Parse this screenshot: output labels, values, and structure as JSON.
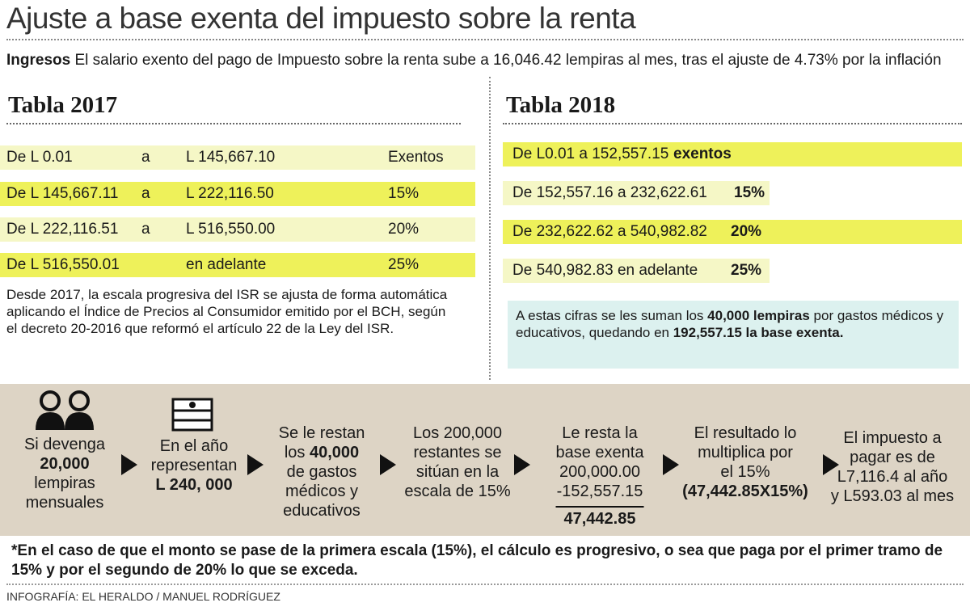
{
  "header": {
    "title": "Ajuste a base exenta del impuesto sobre la renta",
    "lead_label": "Ingresos",
    "lead_text": "El salario exento del pago de Impuesto sobre la renta sube  a 16,046.42 lempiras al mes, tras el ajuste de 4.73% por la inflación"
  },
  "table_2017": {
    "title": "Tabla 2017",
    "rows": [
      [
        "De L 0.01",
        "a",
        "L 145,667.10",
        "Exentos"
      ],
      [
        "De L 145,667.11",
        "a",
        "L 222,116.50",
        "15%"
      ],
      [
        "De L 222,116.51",
        "a",
        "L 516,550.00",
        "20%"
      ],
      [
        "De L 516,550.01",
        "en adelante",
        "25%"
      ]
    ],
    "note": "Desde 2017, la escala progresiva del ISR se ajusta de forma automática aplicando el Índice de Precios al Consumidor emitido por el BCH, según el decreto 20-2016 que reformó el artículo 22 de la Ley del ISR."
  },
  "table_2018": {
    "title": "Tabla 2018",
    "rows": [
      [
        "De L0.01 a 152,557.15",
        "exentos"
      ],
      [
        "De 152,557.16 a 232,622.61",
        "15%"
      ],
      [
        "De 232,622.62 a 540,982.82",
        "20%"
      ],
      [
        "De 540,982.83 en adelante",
        "25%"
      ]
    ],
    "note": [
      {
        "text": "A estas cifras se les suman los ",
        "bold": false
      },
      {
        "text": "40,000 lempiras",
        "bold": true
      },
      {
        "text": " por gastos médicos y educativos, quedando en ",
        "bold": false
      },
      {
        "text": "192,557.15 la base exenta.",
        "bold": true
      }
    ]
  },
  "steps": [
    [
      [
        {
          "text": "Si devenga",
          "bold": false
        }
      ],
      [
        {
          "text": "20,000",
          "bold": true
        }
      ],
      [
        {
          "text": "lempiras",
          "bold": false
        }
      ],
      [
        {
          "text": "mensuales",
          "bold": false
        }
      ]
    ],
    [
      [
        {
          "text": "En el año",
          "bold": false
        }
      ],
      [
        {
          "text": "representan",
          "bold": false
        }
      ],
      [
        {
          "text": "L 240, 000",
          "bold": true
        }
      ]
    ],
    [
      [
        {
          "text": "Se le restan",
          "bold": false
        }
      ],
      [
        {
          "text": "los ",
          "bold": false
        },
        {
          "text": "40,000",
          "bold": true
        }
      ],
      [
        {
          "text": "de gastos",
          "bold": false
        }
      ],
      [
        {
          "text": "médicos y",
          "bold": false
        }
      ],
      [
        {
          "text": "educativos",
          "bold": false
        }
      ]
    ],
    [
      [
        {
          "text": "Los 200,000",
          "bold": false
        }
      ],
      [
        {
          "text": "restantes se",
          "bold": false
        }
      ],
      [
        {
          "text": "sitúan en la",
          "bold": false
        }
      ],
      [
        {
          "text": "escala de 15%",
          "bold": false
        }
      ]
    ],
    [
      [
        {
          "text": "Le resta la",
          "bold": false
        }
      ],
      [
        {
          "text": "base exenta",
          "bold": false
        }
      ],
      [
        {
          "text": "200,000.00",
          "bold": false
        }
      ],
      [
        {
          "text": "-152,557.15",
          "bold": false
        }
      ],
      [
        {
          "text": "47,442.85",
          "bold": true
        }
      ]
    ],
    [
      [
        {
          "text": "El resultado lo",
          "bold": false
        }
      ],
      [
        {
          "text": "multiplica por",
          "bold": false
        }
      ],
      [
        {
          "text": "el 15%",
          "bold": false
        }
      ],
      [
        {
          "text": "(47,442.85X15%)",
          "bold": true
        }
      ]
    ],
    [
      [
        {
          "text": "El impuesto a",
          "bold": false
        }
      ],
      [
        {
          "text": "pagar es de",
          "bold": false
        }
      ],
      [
        {
          "text": "L7,116.4 al año",
          "bold": false
        }
      ],
      [
        {
          "text": "y L593.03 al mes",
          "bold": false
        }
      ]
    ]
  ],
  "footnote": "*En el caso de que el monto se pase de la primera escala (15%), el cálculo es progresivo, o sea que paga por el primer tramo de 15% y por el segundo de 20% lo que se exceda.",
  "credit": "INFOGRAFÍA: EL HERALDO / MANUEL RODRÍGUEZ"
}
